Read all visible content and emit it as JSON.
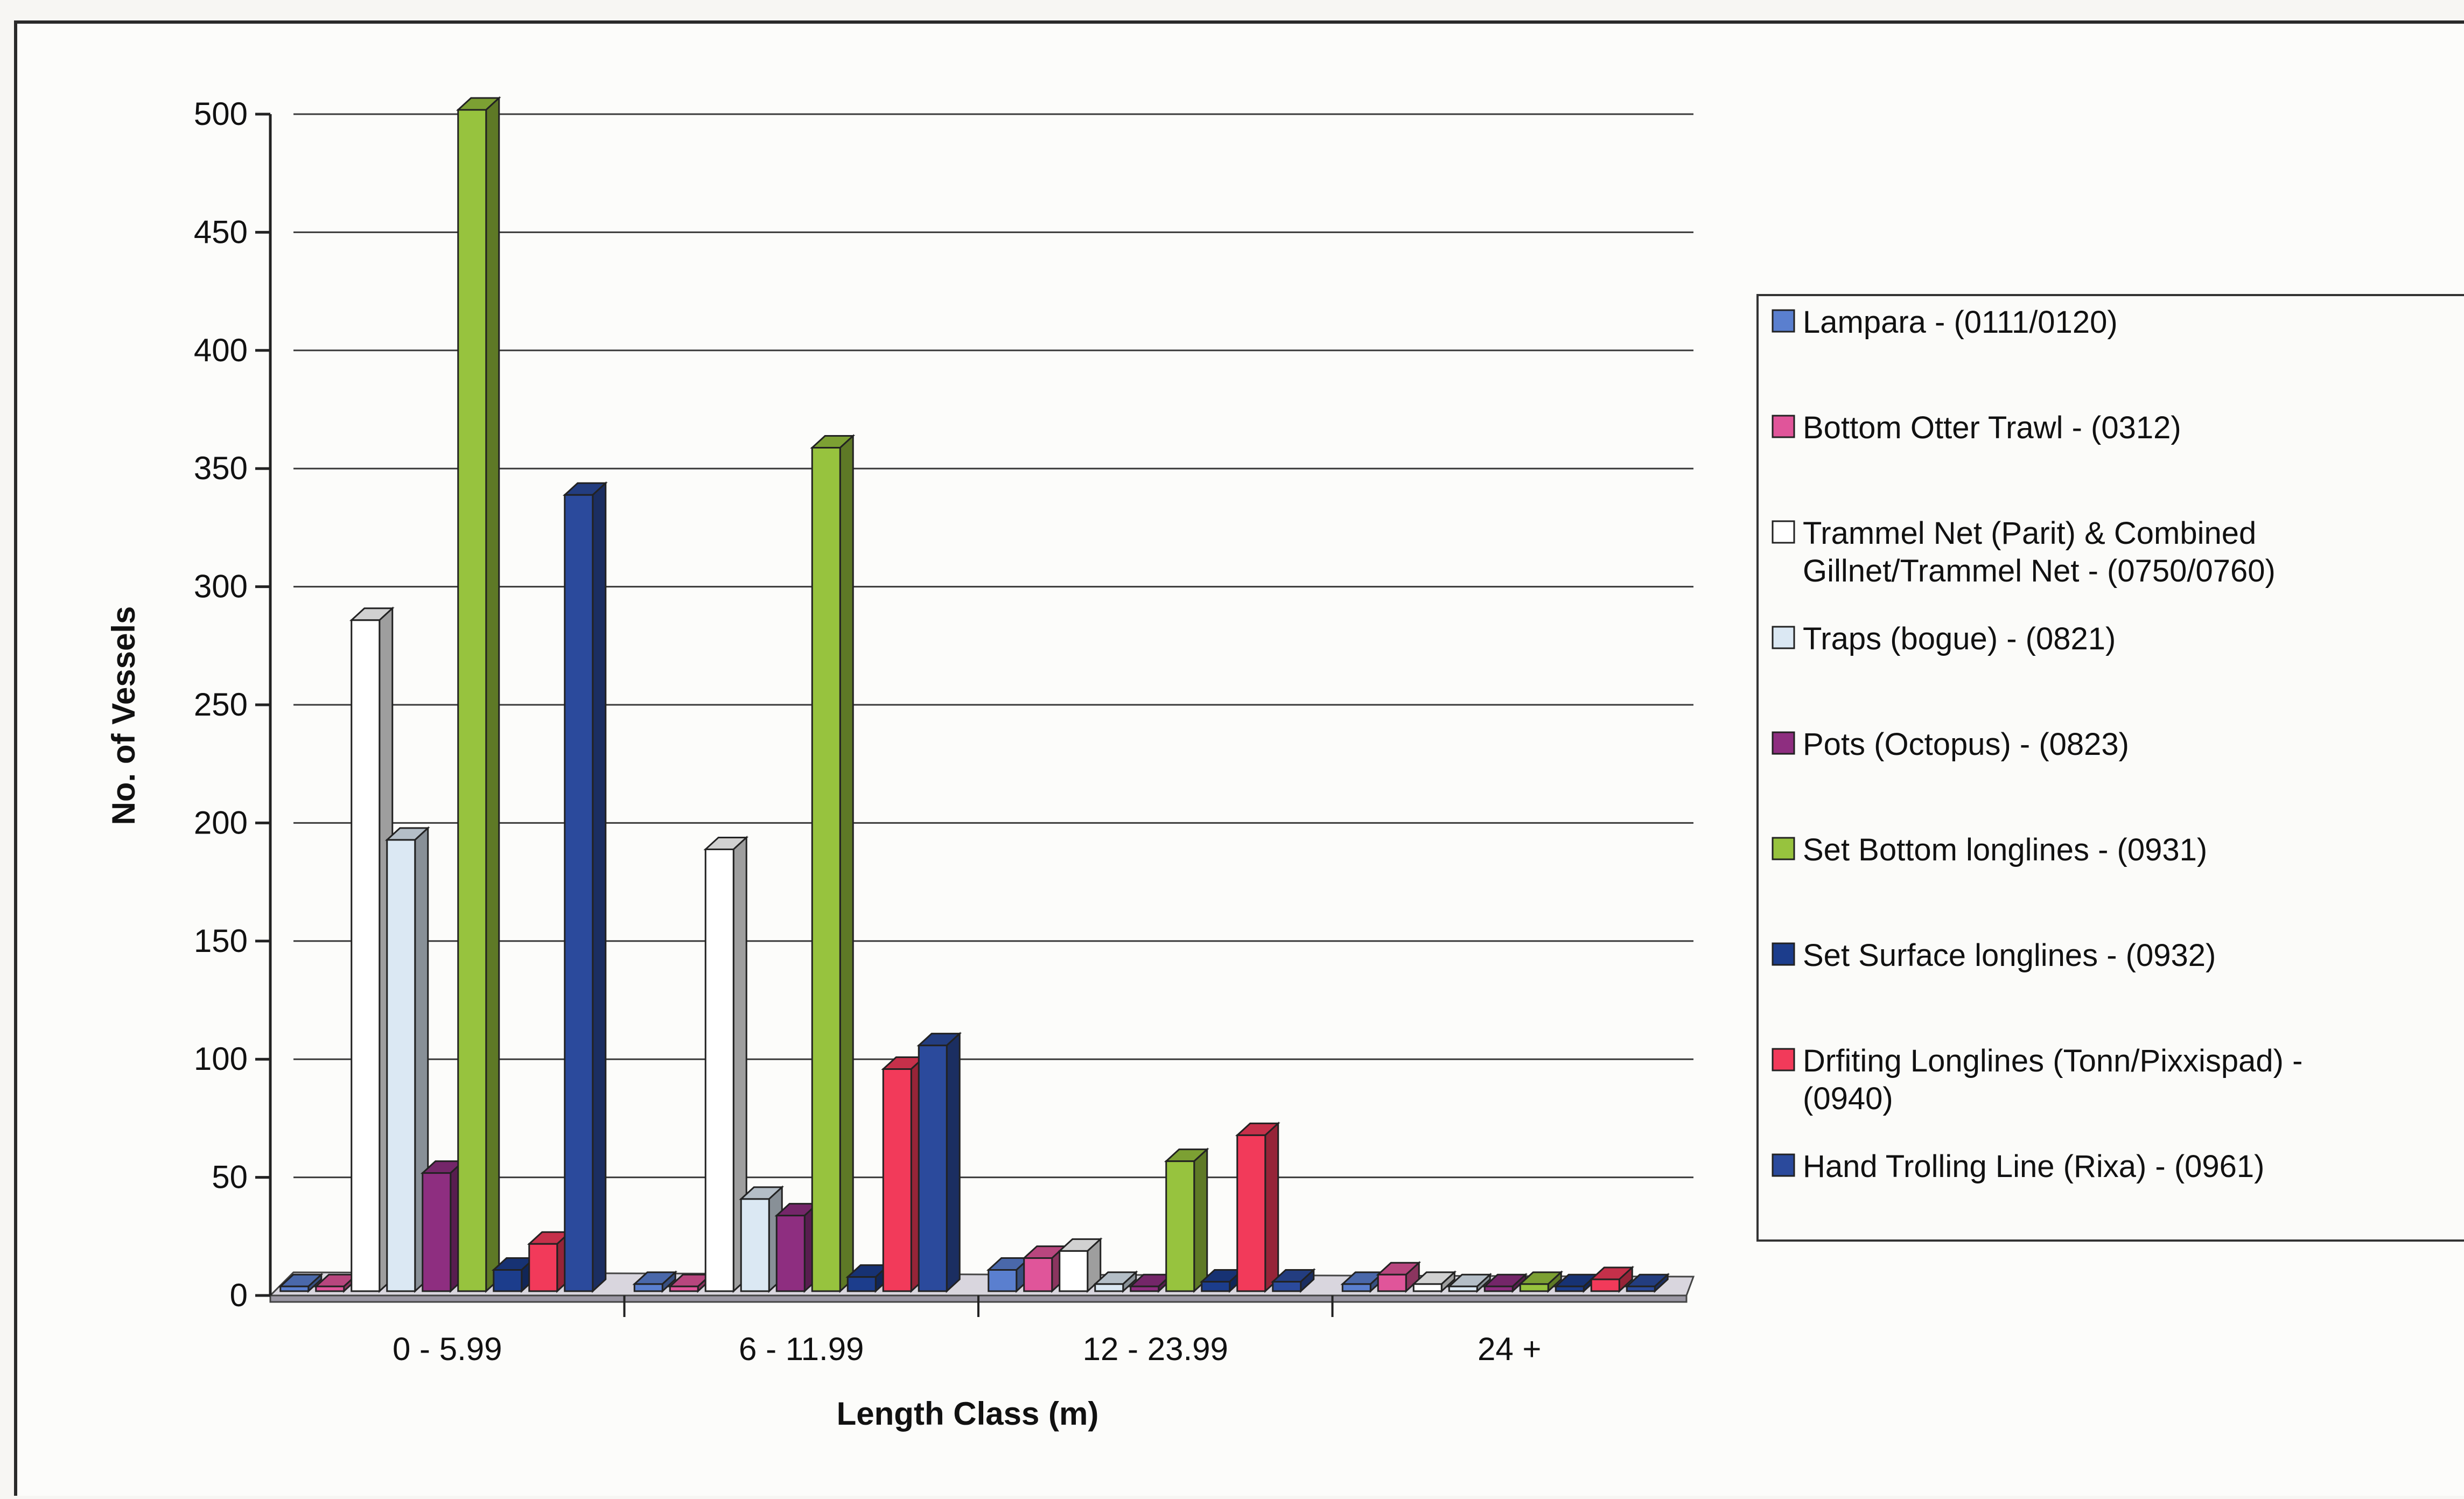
{
  "chart_data": {
    "type": "bar",
    "variant": "3d-clustered-column",
    "xlabel": "Length Class (m)",
    "ylabel": "No. of Vessels",
    "ylim": [
      0,
      500
    ],
    "yticks": [
      0,
      50,
      100,
      150,
      200,
      250,
      300,
      350,
      400,
      450,
      500
    ],
    "grid": true,
    "legend_position": "right",
    "categories": [
      "0 - 5.99",
      "6 - 11.99",
      "12 - 23.99",
      "24 +"
    ],
    "series": [
      {
        "name": "Lampara - (0111/0120)",
        "color": "#5a7fcf",
        "values": [
          2,
          3,
          9,
          3
        ]
      },
      {
        "name": "Bottom Otter Trawl - (0312)",
        "color": "#e0559a",
        "values": [
          2,
          2,
          14,
          7
        ]
      },
      {
        "name": "Trammel Net (Parit) & Combined Gillnet/Trammel Net - (0750/0760)",
        "color": "#ffffff",
        "values": [
          284,
          187,
          17,
          3
        ]
      },
      {
        "name": "Traps (bogue) - (0821)",
        "color": "#dbe8f3",
        "values": [
          191,
          39,
          3,
          2
        ]
      },
      {
        "name": "Pots (Octopus) - (0823)",
        "color": "#8e2e80",
        "values": [
          50,
          32,
          2,
          2
        ]
      },
      {
        "name": "Set Bottom longlines - (0931)",
        "color": "#97c33e",
        "values": [
          500,
          357,
          55,
          3
        ]
      },
      {
        "name": "Set Surface longlines - (0932)",
        "color": "#1c3d8c",
        "values": [
          9,
          6,
          4,
          2
        ]
      },
      {
        "name": "Drfiting Longlines (Tonn/Pixxispad) - (0940)",
        "color": "#f23a5a",
        "values": [
          20,
          94,
          66,
          5
        ]
      },
      {
        "name": "Hand Trolling Line (Rixa) - (0961)",
        "color": "#2b4a9c",
        "values": [
          337,
          104,
          4,
          2
        ]
      }
    ]
  }
}
